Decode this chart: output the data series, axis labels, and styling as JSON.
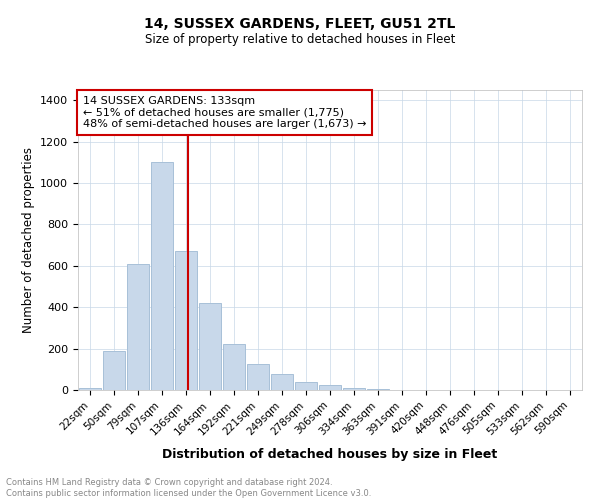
{
  "title1": "14, SUSSEX GARDENS, FLEET, GU51 2TL",
  "title2": "Size of property relative to detached houses in Fleet",
  "xlabel": "Distribution of detached houses by size in Fleet",
  "ylabel": "Number of detached properties",
  "categories": [
    "22sqm",
    "50sqm",
    "79sqm",
    "107sqm",
    "136sqm",
    "164sqm",
    "192sqm",
    "221sqm",
    "249sqm",
    "278sqm",
    "306sqm",
    "334sqm",
    "363sqm",
    "391sqm",
    "420sqm",
    "448sqm",
    "476sqm",
    "505sqm",
    "533sqm",
    "562sqm",
    "590sqm"
  ],
  "values": [
    10,
    190,
    610,
    1100,
    670,
    420,
    220,
    125,
    75,
    40,
    25,
    10,
    5,
    2,
    1,
    0,
    0,
    0,
    0,
    0,
    0
  ],
  "bar_color": "#c8d8ea",
  "bar_edge_color": "#a8c0d8",
  "vline_color": "#cc0000",
  "vline_index": 4,
  "annotation_text": "14 SUSSEX GARDENS: 133sqm\n← 51% of detached houses are smaller (1,775)\n48% of semi-detached houses are larger (1,673) →",
  "annotation_box_color": "#ffffff",
  "annotation_box_edge": "#cc0000",
  "ylim": [
    0,
    1450
  ],
  "yticks": [
    0,
    200,
    400,
    600,
    800,
    1000,
    1200,
    1400
  ],
  "footer_text": "Contains HM Land Registry data © Crown copyright and database right 2024.\nContains public sector information licensed under the Open Government Licence v3.0.",
  "background_color": "#ffffff",
  "grid_color": "#c8d8e8"
}
